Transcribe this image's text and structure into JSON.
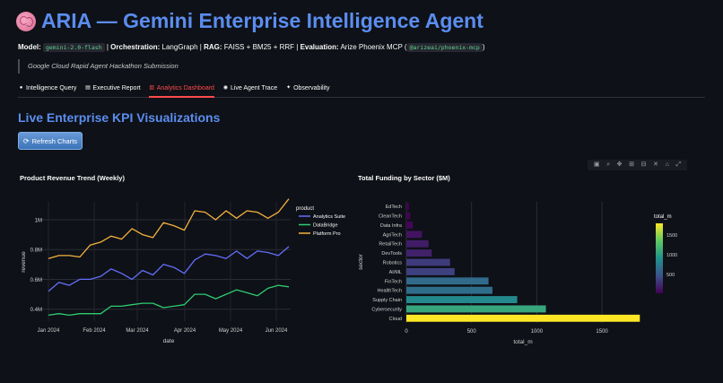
{
  "header": {
    "title": "ARIA — Gemini Enterprise Intelligence Agent",
    "model_label": "Model:",
    "model_value": "gemini-2.0-flash",
    "orch_label": "Orchestration:",
    "orch_value": "LangGraph",
    "rag_label": "RAG:",
    "rag_value": "FAISS + BM25 + RRF",
    "eval_label": "Evaluation:",
    "eval_value": "Arize Phoenix MCP (",
    "eval_code": "@arizeai/phoenix-mcp",
    "eval_close": ")",
    "subtitle": "Google Cloud Rapid Agent Hackathon Submission"
  },
  "tabs": [
    {
      "label": "Intelligence Query",
      "icon": "brain-icon",
      "glyph": "●"
    },
    {
      "label": "Executive Report",
      "icon": "document-icon",
      "glyph": "▤"
    },
    {
      "label": "Analytics Dashboard",
      "icon": "chart-icon",
      "glyph": "▥"
    },
    {
      "label": "Live Agent Trace",
      "icon": "robot-icon",
      "glyph": "◉"
    },
    {
      "label": "Observability",
      "icon": "satellite-icon",
      "glyph": "✦"
    }
  ],
  "section_title": "Live Enterprise KPI Visualizations",
  "refresh_button": "Refresh Charts",
  "modebar_icons": [
    "camera-icon",
    "zoom-icon",
    "pan-icon",
    "zoom-in-icon",
    "zoom-out-icon",
    "autoscale-icon",
    "home-icon",
    "fullscreen-icon"
  ],
  "chart_data": [
    {
      "type": "line",
      "title": "Product Revenue Trend (Weekly)",
      "xlabel": "date",
      "ylabel": "revenue",
      "legend_title": "product",
      "legend_position": "top-right",
      "x_ticks": [
        "Jan 2024",
        "Feb 2024",
        "Mar 2024",
        "Apr 2024",
        "May 2024",
        "Jun 2024"
      ],
      "y_ticks": [
        "0.4M",
        "0.6M",
        "0.8M",
        "1M"
      ],
      "ylim": [
        0.32,
        1.12
      ],
      "grid": true,
      "series": [
        {
          "name": "Analytics Suite",
          "color": "#636efa",
          "values": [
            0.52,
            0.58,
            0.56,
            0.6,
            0.6,
            0.62,
            0.67,
            0.64,
            0.6,
            0.66,
            0.63,
            0.7,
            0.68,
            0.64,
            0.73,
            0.77,
            0.76,
            0.74,
            0.79,
            0.74,
            0.79,
            0.78,
            0.76,
            0.82
          ]
        },
        {
          "name": "DataBridge",
          "color": "#2ecc71",
          "values": [
            0.36,
            0.37,
            0.36,
            0.37,
            0.37,
            0.37,
            0.42,
            0.42,
            0.43,
            0.44,
            0.44,
            0.41,
            0.42,
            0.43,
            0.5,
            0.5,
            0.47,
            0.5,
            0.53,
            0.51,
            0.49,
            0.54,
            0.56,
            0.55
          ]
        },
        {
          "name": "Platform Pro",
          "color": "#f6b23e",
          "values": [
            0.74,
            0.76,
            0.76,
            0.75,
            0.83,
            0.85,
            0.89,
            0.87,
            0.94,
            0.9,
            0.88,
            0.98,
            0.96,
            0.93,
            1.06,
            1.05,
            1.0,
            1.06,
            1.01,
            1.06,
            1.05,
            1.01,
            1.05,
            1.14
          ]
        }
      ]
    },
    {
      "type": "bar",
      "orientation": "horizontal",
      "title": "Total Funding by Sector ($M)",
      "xlabel": "total_m",
      "ylabel": "sector",
      "colorbar_title": "total_m",
      "colorbar_ticks": [
        "500",
        "1000",
        "1500"
      ],
      "x_ticks": [
        "0",
        "500",
        "1000",
        "1500"
      ],
      "xlim": [
        0,
        1850
      ],
      "categories": [
        "EdTech",
        "CleanTech",
        "Data Infra",
        "AgriTech",
        "RetailTech",
        "DevTools",
        "Robotics",
        "AI/ML",
        "FinTech",
        "HealthTech",
        "Supply Chain",
        "Cybersecurity",
        "Cloud"
      ],
      "values": [
        20,
        30,
        50,
        120,
        170,
        195,
        335,
        370,
        630,
        660,
        850,
        1070,
        1790
      ]
    }
  ]
}
